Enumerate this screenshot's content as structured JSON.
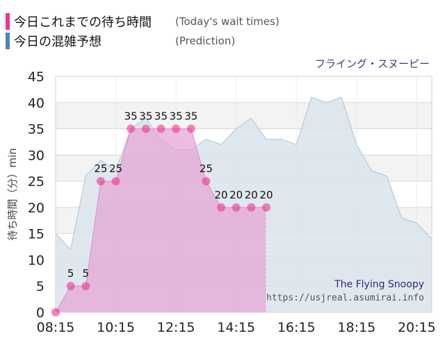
{
  "legend": {
    "today_label": "今日これまでの待ち時間",
    "today_sub": "(Today's wait times)",
    "prediction_label": "今日の混雑予想",
    "prediction_sub": "(Prediction)"
  },
  "attraction_name": "フライング・スヌーピー",
  "watermark": {
    "name": "The Flying Snoopy",
    "url": "https://usjreal.asumirai.info"
  },
  "colors": {
    "today": "#f0338f",
    "today_fill": "#e6a3d6",
    "prediction": "#4a86b8",
    "prediction_fill": "#dbe4ec"
  },
  "chart_data": {
    "type": "area",
    "ylabel": "待ち時間（分）min",
    "ylim": [
      0,
      45
    ],
    "yticks": [
      0,
      5,
      10,
      15,
      20,
      25,
      30,
      35,
      40,
      45
    ],
    "xlim": [
      "08:15",
      "20:45"
    ],
    "xticks": [
      "08:15",
      "10:15",
      "12:15",
      "14:15",
      "16:15",
      "18:15",
      "20:15"
    ],
    "grid": true,
    "series": [
      {
        "name": "今日これまでの待ち時間",
        "kind": "today",
        "points": [
          {
            "x": "08:15",
            "y": 0,
            "label": ""
          },
          {
            "x": "08:45",
            "y": 5,
            "label": "5"
          },
          {
            "x": "09:15",
            "y": 5,
            "label": "5"
          },
          {
            "x": "09:45",
            "y": 25,
            "label": "25"
          },
          {
            "x": "10:15",
            "y": 25,
            "label": "25"
          },
          {
            "x": "10:45",
            "y": 35,
            "label": "35"
          },
          {
            "x": "11:15",
            "y": 35,
            "label": "35"
          },
          {
            "x": "11:45",
            "y": 35,
            "label": "35"
          },
          {
            "x": "12:15",
            "y": 35,
            "label": "35"
          },
          {
            "x": "12:45",
            "y": 35,
            "label": "35"
          },
          {
            "x": "13:15",
            "y": 25,
            "label": "25"
          },
          {
            "x": "13:45",
            "y": 20,
            "label": "20"
          },
          {
            "x": "14:15",
            "y": 20,
            "label": "20"
          },
          {
            "x": "14:45",
            "y": 20,
            "label": "20"
          },
          {
            "x": "15:15",
            "y": 20,
            "label": "20"
          }
        ]
      },
      {
        "name": "今日の混雑予想",
        "kind": "prediction",
        "points": [
          {
            "x": "08:15",
            "y": 15
          },
          {
            "x": "08:45",
            "y": 12
          },
          {
            "x": "09:15",
            "y": 26
          },
          {
            "x": "09:45",
            "y": 29
          },
          {
            "x": "10:15",
            "y": 27
          },
          {
            "x": "10:45",
            "y": 35
          },
          {
            "x": "11:15",
            "y": 37
          },
          {
            "x": "11:45",
            "y": 33
          },
          {
            "x": "12:15",
            "y": 31
          },
          {
            "x": "12:45",
            "y": 31
          },
          {
            "x": "13:15",
            "y": 33
          },
          {
            "x": "13:45",
            "y": 32
          },
          {
            "x": "14:15",
            "y": 35
          },
          {
            "x": "14:45",
            "y": 37
          },
          {
            "x": "15:15",
            "y": 33
          },
          {
            "x": "15:45",
            "y": 33
          },
          {
            "x": "16:15",
            "y": 32
          },
          {
            "x": "16:45",
            "y": 41
          },
          {
            "x": "17:15",
            "y": 40
          },
          {
            "x": "17:45",
            "y": 41
          },
          {
            "x": "18:15",
            "y": 32
          },
          {
            "x": "18:45",
            "y": 27
          },
          {
            "x": "19:15",
            "y": 26
          },
          {
            "x": "19:45",
            "y": 18
          },
          {
            "x": "20:15",
            "y": 17
          },
          {
            "x": "20:45",
            "y": 14
          }
        ]
      }
    ]
  }
}
